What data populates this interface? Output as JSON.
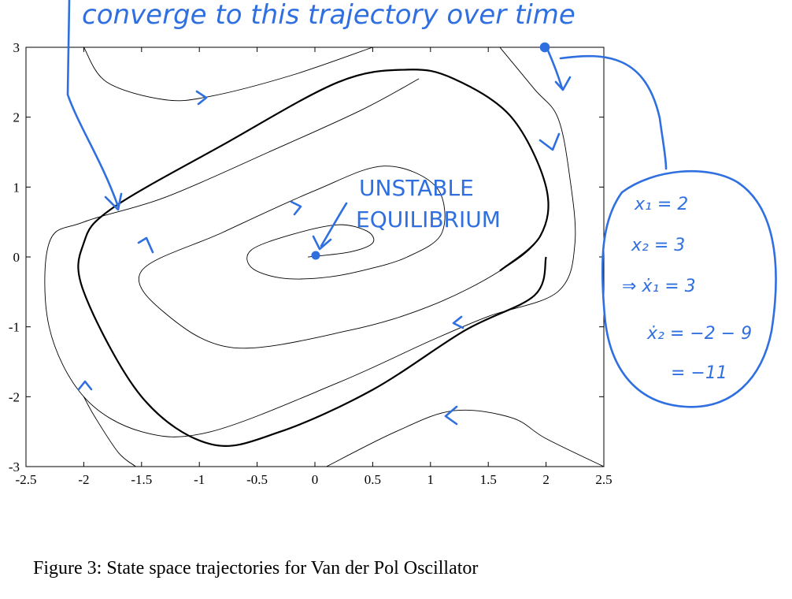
{
  "chart_data": {
    "type": "line",
    "title": "",
    "xlabel": "",
    "ylabel": "",
    "xlim": [
      -2.5,
      2.5
    ],
    "ylim": [
      -3,
      3
    ],
    "x_ticks": [
      "-2.5",
      "-2",
      "-1.5",
      "-1",
      "-0.5",
      "0",
      "0.5",
      "1",
      "1.5",
      "2",
      "2.5"
    ],
    "y_ticks": [
      "-3",
      "-2",
      "-1",
      "0",
      "1",
      "2",
      "3"
    ],
    "grid": false,
    "series": [
      {
        "points": [
          [
            -0.06,
            0.0
          ],
          [
            0.3,
            0.07
          ],
          [
            0.5,
            0.2
          ],
          [
            0.45,
            0.37
          ],
          [
            0.2,
            0.46
          ],
          [
            -0.2,
            0.32
          ],
          [
            -0.55,
            0.1
          ],
          [
            -0.55,
            -0.15
          ],
          [
            -0.3,
            -0.3
          ],
          [
            0.05,
            -0.3
          ],
          [
            0.4,
            -0.2
          ],
          [
            0.8,
            0.0
          ],
          [
            1.1,
            0.35
          ],
          [
            1.05,
            1.0
          ],
          [
            0.6,
            1.3
          ],
          [
            0.0,
            0.95
          ],
          [
            -0.8,
            0.35
          ],
          [
            -1.5,
            -0.2
          ],
          [
            -1.3,
            -0.8
          ],
          [
            -0.7,
            -1.3
          ],
          [
            0.3,
            -1.05
          ],
          [
            1.0,
            -0.7
          ],
          [
            1.6,
            -0.2
          ],
          [
            1.95,
            0.3
          ],
          [
            2.0,
            1.0
          ],
          [
            1.7,
            2.0
          ],
          [
            1.2,
            2.55
          ],
          [
            0.8,
            2.68
          ],
          [
            0.2,
            2.5
          ],
          [
            -0.8,
            1.6
          ],
          [
            -1.75,
            0.7
          ],
          [
            -2.0,
            0.2
          ],
          [
            -2.0,
            -0.5
          ],
          [
            -1.5,
            -2.0
          ],
          [
            -0.9,
            -2.68
          ],
          [
            -0.3,
            -2.5
          ],
          [
            0.5,
            -1.9
          ],
          [
            1.3,
            -1.05
          ],
          [
            1.9,
            -0.55
          ],
          [
            2.0,
            0.0
          ]
        ]
      },
      {
        "points": [
          [
            -2.0,
            3.0
          ],
          [
            -1.8,
            2.5
          ],
          [
            -1.3,
            2.25
          ],
          [
            -0.9,
            2.3
          ],
          [
            -0.2,
            2.6
          ],
          [
            0.5,
            3.0
          ]
        ]
      },
      {
        "points": [
          [
            1.6,
            3.0
          ],
          [
            1.9,
            2.4
          ],
          [
            2.1,
            2.0
          ],
          [
            2.2,
            1.2
          ],
          [
            2.25,
            0.2
          ],
          [
            2.1,
            -0.5
          ],
          [
            1.5,
            -0.85
          ],
          [
            1.0,
            -1.2
          ],
          [
            0.2,
            -1.8
          ],
          [
            -0.9,
            -2.5
          ],
          [
            -1.5,
            -2.5
          ],
          [
            -2.0,
            -2.0
          ],
          [
            -2.3,
            -1.0
          ],
          [
            -2.3,
            0.2
          ],
          [
            -2.0,
            0.5
          ],
          [
            -1.3,
            0.85
          ],
          [
            -0.4,
            1.5
          ],
          [
            0.4,
            2.1
          ],
          [
            0.9,
            2.55
          ]
        ]
      },
      {
        "points": [
          [
            2.5,
            -3.0
          ],
          [
            2.0,
            -2.6
          ],
          [
            1.7,
            -2.3
          ],
          [
            1.2,
            -2.2
          ],
          [
            0.7,
            -2.5
          ],
          [
            0.1,
            -3.0
          ]
        ]
      },
      {
        "points": [
          [
            -2.0,
            -2.0
          ],
          [
            -1.9,
            -2.3
          ],
          [
            -1.7,
            -2.8
          ],
          [
            -1.55,
            -3.0
          ]
        ]
      }
    ]
  },
  "figure": {
    "caption": "Figure 3:  State space trajectories for Van der Pol Oscillator"
  },
  "annotations": {
    "top_note": "converge to this trajectory over time",
    "equilibrium_label": [
      "UNSTABLE",
      "EQUILIBRIUM"
    ],
    "bubble_lines": [
      "x₁ = 2",
      "x₂ = 3",
      "⇒ ẋ₁ = 3",
      "ẋ₂ = −2 − 9",
      "= −11"
    ]
  },
  "colors": {
    "curve": "#000000",
    "ink": "#2f6fe0",
    "axes": "#000000"
  }
}
